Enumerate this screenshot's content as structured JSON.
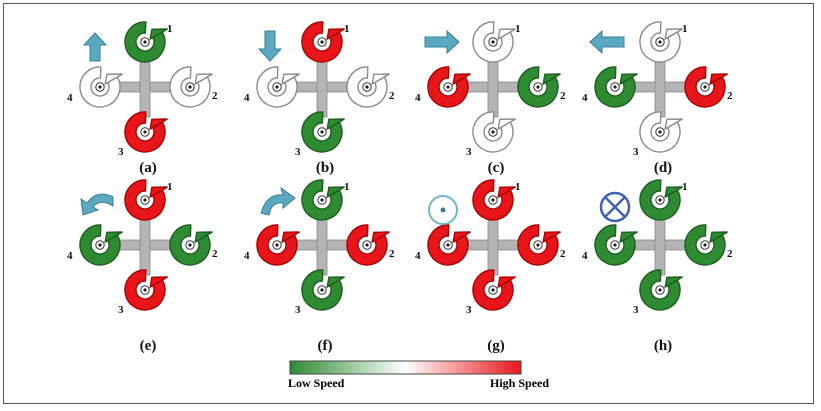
{
  "colors": {
    "high": "#e8161b",
    "low": "#2e8b32",
    "idle": "#ffffff",
    "arm": "#b4b4b4",
    "arrow": "#5aa9c0"
  },
  "panels": [
    {
      "label": "(a)",
      "indicator": "arrow-up",
      "motors": [
        "low",
        "idle",
        "high",
        "idle"
      ]
    },
    {
      "label": "(b)",
      "indicator": "arrow-down",
      "motors": [
        "high",
        "idle",
        "low",
        "idle"
      ]
    },
    {
      "label": "(c)",
      "indicator": "arrow-right",
      "motors": [
        "idle",
        "low",
        "idle",
        "high"
      ]
    },
    {
      "label": "(d)",
      "indicator": "arrow-left",
      "motors": [
        "idle",
        "high",
        "idle",
        "low"
      ]
    },
    {
      "label": "(e)",
      "indicator": "rotate-ccw",
      "motors": [
        "high",
        "low",
        "high",
        "low"
      ]
    },
    {
      "label": "(f)",
      "indicator": "rotate-cw",
      "motors": [
        "low",
        "high",
        "low",
        "high"
      ]
    },
    {
      "label": "(g)",
      "indicator": "dot-up",
      "motors": [
        "high",
        "high",
        "high",
        "high"
      ]
    },
    {
      "label": "(h)",
      "indicator": "cross-down",
      "motors": [
        "low",
        "low",
        "low",
        "low"
      ]
    }
  ],
  "motor_numbers": [
    "1",
    "2",
    "3",
    "4"
  ],
  "legend": {
    "low_label": "Low Speed",
    "high_label": "High Speed"
  }
}
